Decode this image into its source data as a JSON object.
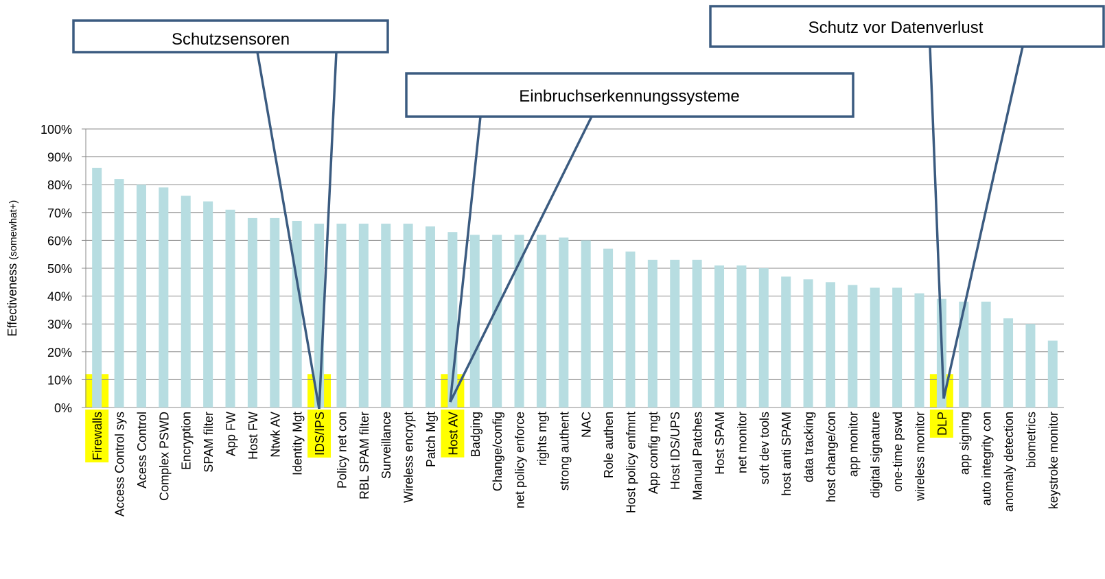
{
  "chart_data": {
    "type": "bar",
    "ylabel": "Effectiveness",
    "ylabel_note": "(somewhat+)",
    "categories": [
      "Firewalls",
      "Access Control sys",
      "Acess Control",
      "Complex PSWD",
      "Encryption",
      "SPAM filter",
      "App FW",
      "Host FW",
      "Ntwk AV",
      "Identity Mgt",
      "IDS/IPS",
      "Policy net con",
      "RBL SPAM filter",
      "Surveillance",
      "Wireless encrypt",
      "Patch Mgt",
      "Host AV",
      "Badging",
      "Change/config",
      "net policy enforce",
      "rights mgt",
      "strong authent",
      "NAC",
      "Role authen",
      "Host policy enfmnt",
      "App config mgt",
      "Host IDS/UPS",
      "Manual Patches",
      "Host SPAM",
      "net monitor",
      "soft dev tools",
      "host anti SPAM",
      "data tracking",
      "host change/con",
      "app monitor",
      "digital signature",
      "one-time pswd",
      "wireless monitor",
      "DLP",
      "app signing",
      "auto integrity con",
      "anomaly detection",
      "biometrics",
      "keystroke monitor"
    ],
    "values": [
      86,
      82,
      80,
      79,
      76,
      74,
      71,
      68,
      68,
      67,
      66,
      66,
      66,
      66,
      66,
      65,
      63,
      62,
      62,
      62,
      62,
      61,
      60,
      57,
      56,
      53,
      53,
      53,
      51,
      51,
      50,
      47,
      46,
      45,
      44,
      43,
      43,
      41,
      39,
      38,
      38,
      32,
      30,
      24
    ],
    "color": "#b7dde1",
    "ylim": [
      0,
      100
    ],
    "yticks": [
      {
        "value": 0,
        "label": "0%"
      },
      {
        "value": 10,
        "label": "10%"
      },
      {
        "value": 20,
        "label": "20%"
      },
      {
        "value": 30,
        "label": "30%"
      },
      {
        "value": 40,
        "label": "40%"
      },
      {
        "value": 50,
        "label": "50%"
      },
      {
        "value": 60,
        "label": "60%"
      },
      {
        "value": 70,
        "label": "70%"
      },
      {
        "value": 80,
        "label": "80%"
      },
      {
        "value": 90,
        "label": "90%"
      },
      {
        "value": 100,
        "label": "100%"
      }
    ],
    "grid": true,
    "annotations": [
      {
        "text": "Schutzsensoren"
      },
      {
        "text": "Einbruchserkennungssysteme"
      },
      {
        "text": "Schutz vor Datenverlust"
      }
    ]
  }
}
